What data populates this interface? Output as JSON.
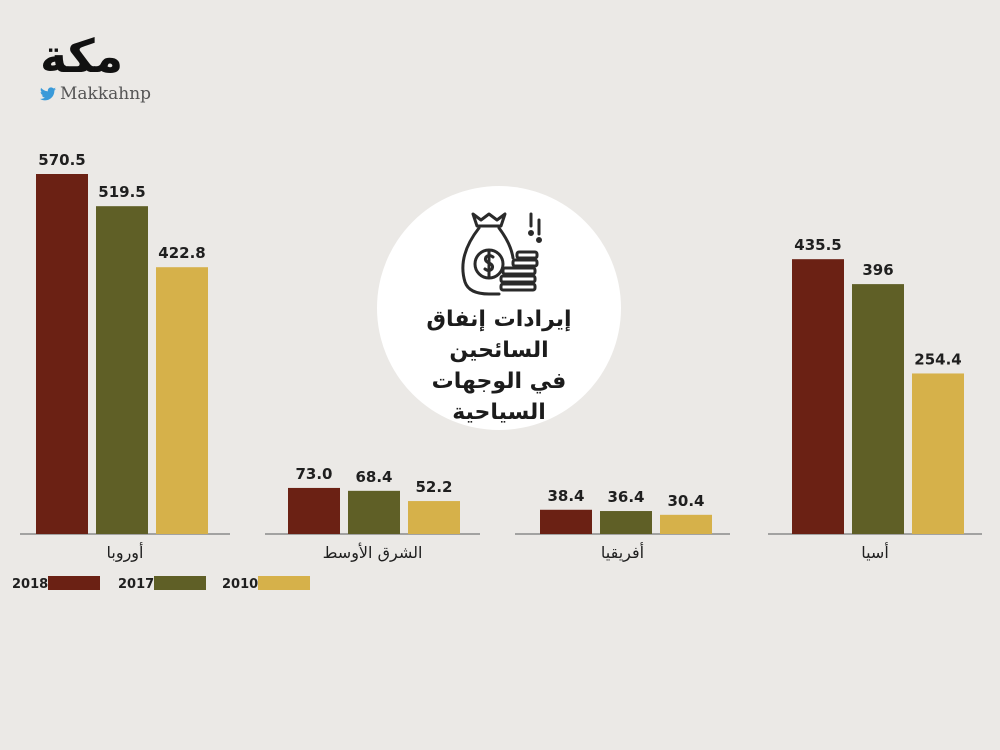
{
  "brand": {
    "logo_text": "مكة",
    "handle": "Makkahnp",
    "handle_icon": "twitter-bird-icon"
  },
  "badge": {
    "title_lines": [
      "إيرادات إنفاق السائحين",
      "في الوجهات",
      "السياحية"
    ],
    "icon": "money-bag-coins-icon"
  },
  "colors": {
    "2018": "#6b2114",
    "2017": "#5f5f26",
    "2010": "#d6b14a",
    "axis": "#8a8a8a",
    "label": "#1f1f1f"
  },
  "chart_data": {
    "type": "bar",
    "title": "إيرادات إنفاق السائحين في الوجهات السياحية",
    "categories": [
      "أوروبا",
      "الشرق الأوسط",
      "أفريقيا",
      "أسيا"
    ],
    "series": [
      {
        "name": "2018",
        "values": [
          570.5,
          73.0,
          38.4,
          435.5
        ],
        "labels": [
          "570.5",
          "73.0",
          "38.4",
          "435.5"
        ]
      },
      {
        "name": "2017",
        "values": [
          519.5,
          68.4,
          36.4,
          396
        ],
        "labels": [
          "519.5",
          "68.4",
          "36.4",
          "396"
        ]
      },
      {
        "name": "2010",
        "values": [
          422.8,
          52.2,
          30.4,
          254.4
        ],
        "labels": [
          "422.8",
          "52.2",
          "30.4",
          "254.4"
        ]
      }
    ],
    "legend": [
      "2018",
      "2017",
      "2010"
    ],
    "legend_position": "bottom-left",
    "xlabel": "",
    "ylabel": "",
    "ylim": [
      0,
      570.5
    ],
    "grid": false
  }
}
